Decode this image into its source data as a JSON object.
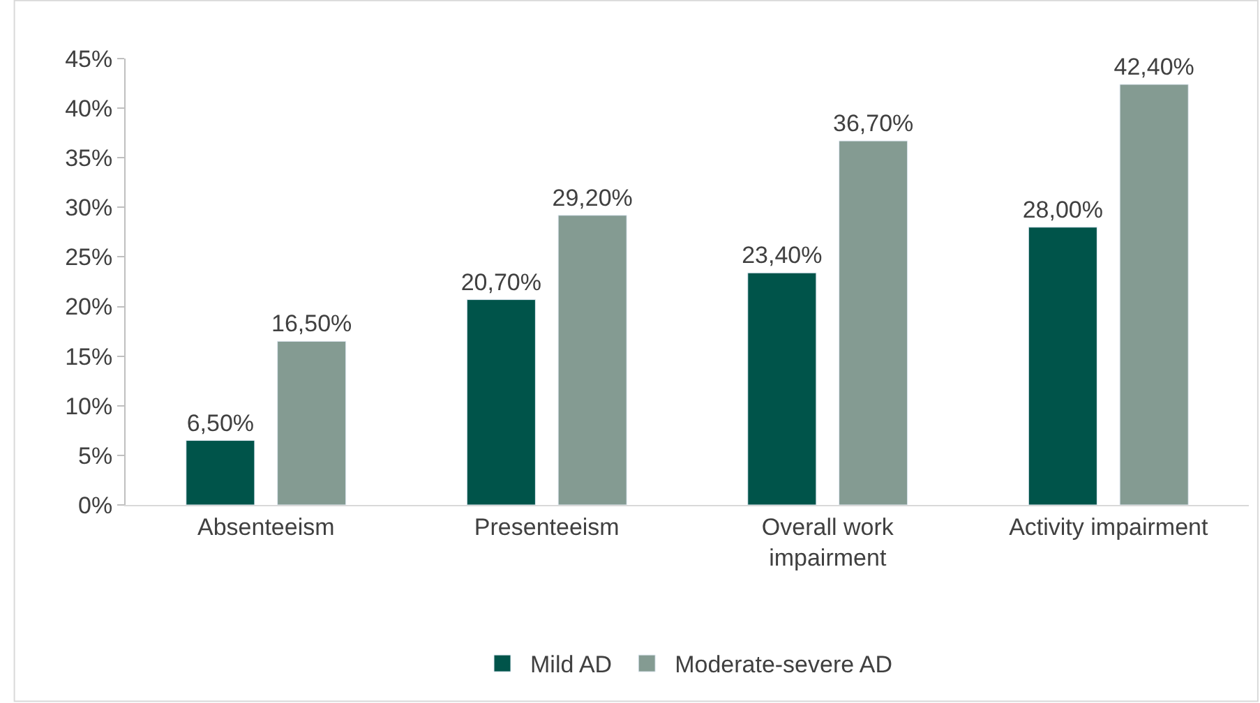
{
  "chart_data": {
    "type": "bar",
    "categories": [
      "Absenteeism",
      "Presenteeism",
      "Overall work\nimpairment",
      "Activity impairment"
    ],
    "series": [
      {
        "name": "Mild AD",
        "color": "#00544a",
        "values": [
          6.5,
          20.7,
          23.4,
          28.0
        ],
        "value_labels": [
          "6,50%",
          "20,70%",
          "23,40%",
          "28,00%"
        ]
      },
      {
        "name": "Moderate-severe AD",
        "color": "#849b92",
        "values": [
          16.5,
          29.2,
          36.7,
          42.4
        ],
        "value_labels": [
          "16,50%",
          "29,20%",
          "36,70%",
          "42,40%"
        ]
      }
    ],
    "ylim": [
      0,
      45
    ],
    "yticks": [
      {
        "value": 0,
        "label": "0%"
      },
      {
        "value": 5,
        "label": "5%"
      },
      {
        "value": 10,
        "label": "10%"
      },
      {
        "value": 15,
        "label": "15%"
      },
      {
        "value": 20,
        "label": "20%"
      },
      {
        "value": 25,
        "label": "25%"
      },
      {
        "value": 30,
        "label": "30%"
      },
      {
        "value": 35,
        "label": "35%"
      },
      {
        "value": 40,
        "label": "40%"
      },
      {
        "value": 45,
        "label": "45%"
      }
    ],
    "legend": "bottom"
  }
}
